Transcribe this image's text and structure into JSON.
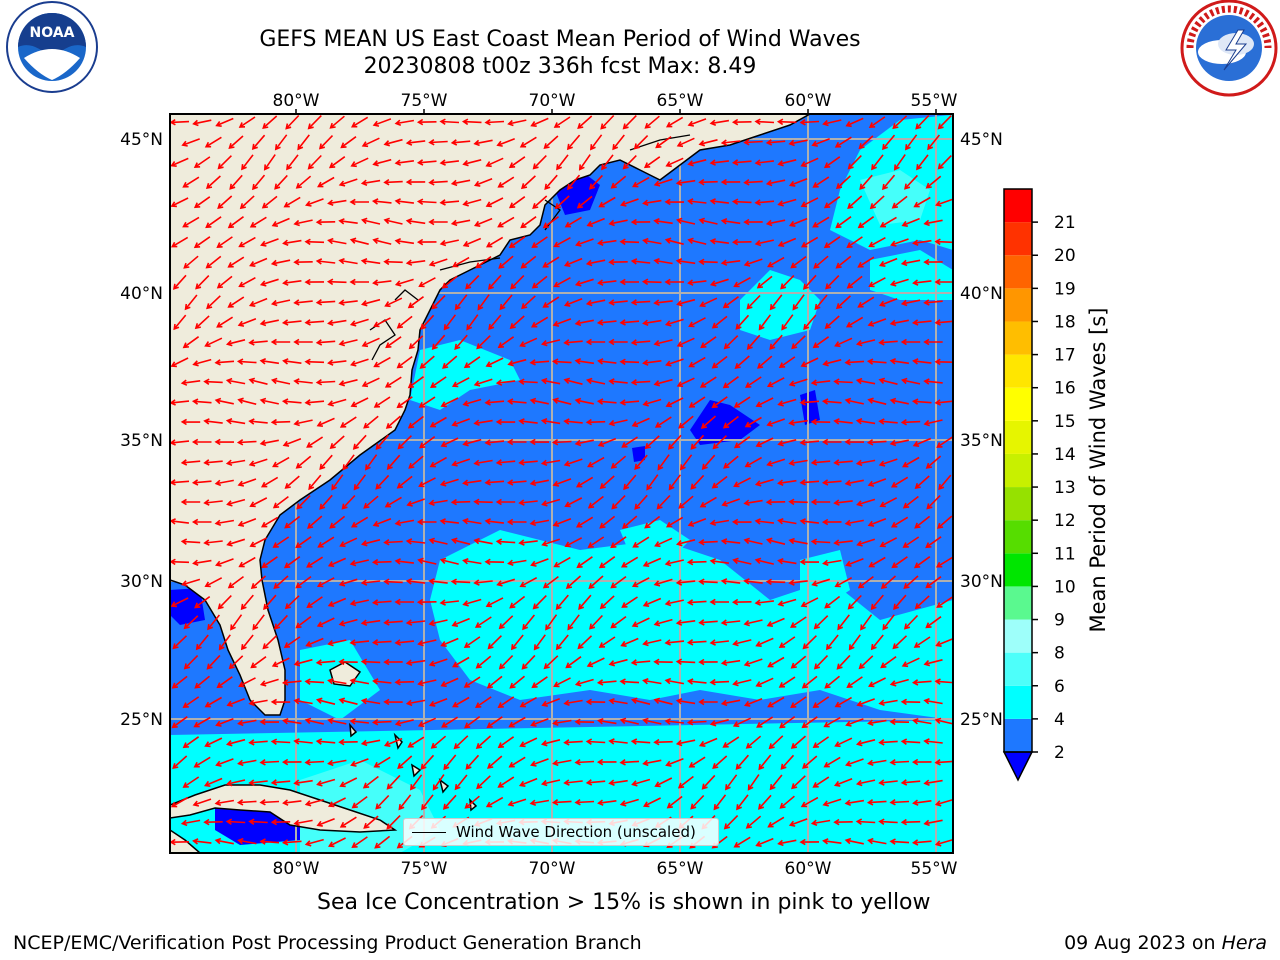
{
  "header": {
    "title_line1": "GEFS MEAN US East Coast Mean Period of Wind Waves",
    "title_line2": "20230808 t00z 336h fcst   Max: 8.49"
  },
  "logos": {
    "left_icon": "noaa-logo-icon",
    "left_text": "NOAA",
    "right_icon": "national-weather-service-logo-icon",
    "right_text": "NATIONAL WEATHER SERVICE"
  },
  "map": {
    "lon_ticks": [
      "80°W",
      "75°W",
      "70°W",
      "65°W",
      "60°W",
      "55°W"
    ],
    "lat_ticks": [
      "45°N",
      "40°N",
      "35°N",
      "30°N",
      "25°N"
    ],
    "land_color": "#efecdc",
    "ocean_colors": {
      "period_2_4": "#1e78ff",
      "period_4_6": "#00ffff",
      "period_6_8": "#4dfffa",
      "period_below_2": "#0000ff"
    },
    "arrow_color": "#ff0000",
    "grid": true
  },
  "legend": {
    "label": "Wind Wave Direction (unscaled)",
    "placement": "bottom-center"
  },
  "colorbar": {
    "label": "Mean Period of Wind Waves [s]",
    "ticks": [
      "2",
      "4",
      "6",
      "8",
      "9",
      "10",
      "11",
      "12",
      "13",
      "14",
      "15",
      "16",
      "17",
      "18",
      "19",
      "20",
      "21"
    ],
    "colors": [
      "#1e78ff",
      "#00ffff",
      "#4dfffa",
      "#9efffa",
      "#5af98f",
      "#00e600",
      "#56dd00",
      "#96e100",
      "#c8f000",
      "#e6f500",
      "#ffff00",
      "#ffe600",
      "#ffbe00",
      "#ff9600",
      "#ff6400",
      "#ff3200",
      "#ff0000"
    ],
    "extend_color": "#0000ff"
  },
  "footer": {
    "ice_note": "Sea Ice Concentration > 15% is shown in pink to yellow",
    "credit": "NCEP/EMC/Verification Post Processing Product Generation Branch",
    "date": "09 Aug 2023 on",
    "machine": "Hera"
  }
}
